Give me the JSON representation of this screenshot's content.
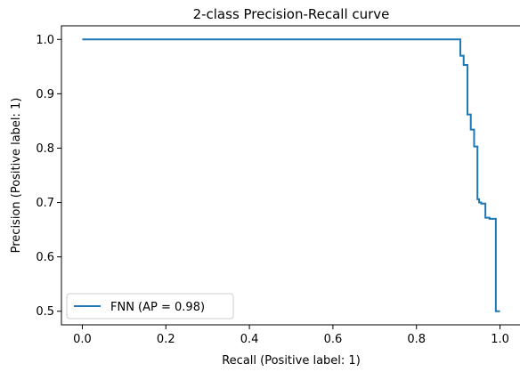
{
  "chart_data": {
    "type": "line",
    "title": "2-class Precision-Recall curve",
    "xlabel": "Recall (Positive label: 1)",
    "ylabel": "Precision (Positive label: 1)",
    "xlim": [
      -0.05,
      1.05
    ],
    "ylim": [
      0.475,
      1.025
    ],
    "xticks": [
      0.0,
      0.2,
      0.4,
      0.6,
      0.8,
      1.0
    ],
    "xtick_labels": [
      "0.0",
      "0.2",
      "0.4",
      "0.6",
      "0.8",
      "1.0"
    ],
    "yticks": [
      0.5,
      0.6,
      0.7,
      0.8,
      0.9,
      1.0
    ],
    "ytick_labels": [
      "0.5",
      "0.6",
      "0.7",
      "0.8",
      "0.9",
      "1.0"
    ],
    "grid": false,
    "legend_position": "lower-left",
    "line_color": "#1f77b4",
    "series": [
      {
        "name": "FNN (AP = 0.98)",
        "step": "post",
        "x": [
          0.0,
          0.905,
          0.905,
          0.913,
          0.913,
          0.922,
          0.922,
          0.93,
          0.93,
          0.938,
          0.938,
          0.946,
          0.946,
          0.95,
          0.95,
          0.955,
          0.955,
          0.965,
          0.965,
          0.975,
          0.975,
          0.99,
          0.99,
          1.0
        ],
        "y": [
          1.0,
          1.0,
          0.97,
          0.97,
          0.953,
          0.953,
          0.862,
          0.862,
          0.834,
          0.834,
          0.803,
          0.803,
          0.706,
          0.706,
          0.7,
          0.7,
          0.698,
          0.698,
          0.672,
          0.672,
          0.67,
          0.67,
          0.5,
          0.5
        ]
      }
    ]
  }
}
